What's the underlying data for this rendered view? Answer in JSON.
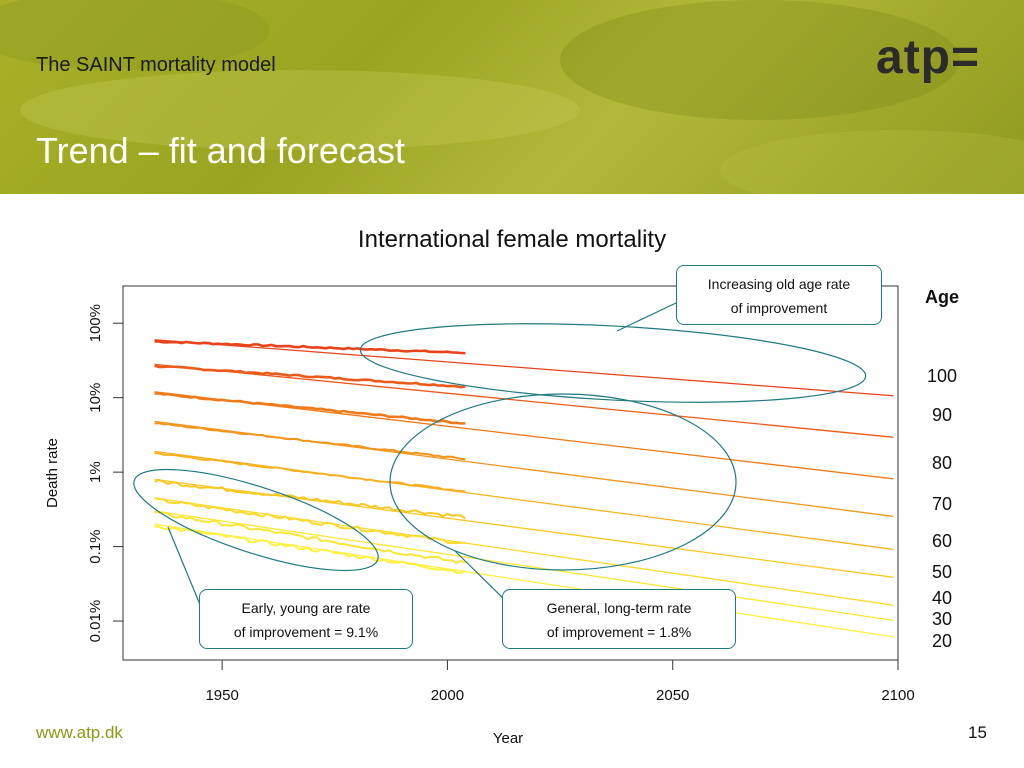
{
  "header": {
    "subtitle": "The SAINT mortality model",
    "title": "Trend – fit and forecast",
    "logo": "atp="
  },
  "footer": {
    "url": "www.atp.dk",
    "page_number": "15"
  },
  "colors": {
    "header_bg": "#a4ad26",
    "callout_border": "#1f7a83",
    "footer_url": "#8a9a12"
  },
  "chart_data": {
    "type": "line",
    "title": "International female mortality",
    "xlabel": "Year",
    "ylabel": "Death rate",
    "y_scale": "log",
    "xlim": [
      1928,
      2100
    ],
    "ylim": [
      3e-05,
      3.16
    ],
    "x_ticks": [
      1950,
      2000,
      2050,
      2100
    ],
    "y_ticks": [
      {
        "value": 1.0,
        "label": "100%"
      },
      {
        "value": 0.1,
        "label": "10%"
      },
      {
        "value": 0.01,
        "label": "1%"
      },
      {
        "value": 0.001,
        "label": "0.1%"
      },
      {
        "value": 0.0001,
        "label": "0.01%"
      }
    ],
    "legend_title": "Age",
    "observed_period": [
      1935,
      2004
    ],
    "series": [
      {
        "name": "100",
        "color": "#e8431a",
        "trend_start": 0.6,
        "trend_end": 0.105,
        "obs_2004": 0.4
      },
      {
        "name": "90",
        "color": "#ec5a1a",
        "trend_start": 0.28,
        "trend_end": 0.029,
        "obs_2004": 0.14
      },
      {
        "name": "80",
        "color": "#ef7a1a",
        "trend_start": 0.12,
        "trend_end": 0.008,
        "obs_2004": 0.045
      },
      {
        "name": "70",
        "color": "#f3951c",
        "trend_start": 0.048,
        "trend_end": 0.0025,
        "obs_2004": 0.015
      },
      {
        "name": "60",
        "color": "#f7b120",
        "trend_start": 0.019,
        "trend_end": 0.0009,
        "obs_2004": 0.0055
      },
      {
        "name": "50",
        "color": "#f9c824",
        "trend_start": 0.008,
        "trend_end": 0.00038,
        "obs_2004": 0.0025
      },
      {
        "name": "40",
        "color": "#fbd92a",
        "trend_start": 0.0045,
        "trend_end": 0.00016,
        "obs_2004": 0.0011
      },
      {
        "name": "30",
        "color": "#fde534",
        "trend_start": 0.003,
        "trend_end": 0.0001,
        "obs_2004": 0.0006
      },
      {
        "name": "20",
        "color": "#fff03e",
        "trend_start": 0.002,
        "trend_end": 6e-05,
        "obs_2004": 0.00045
      }
    ],
    "annotations": [
      {
        "id": "old",
        "lines": [
          "Increasing old age rate",
          "of improvement"
        ]
      },
      {
        "id": "general",
        "lines": [
          "General, long-term rate",
          "of improvement = 1.8%"
        ]
      },
      {
        "id": "young",
        "lines": [
          "Early, young are rate",
          "of improvement = 9.1%"
        ]
      }
    ]
  }
}
